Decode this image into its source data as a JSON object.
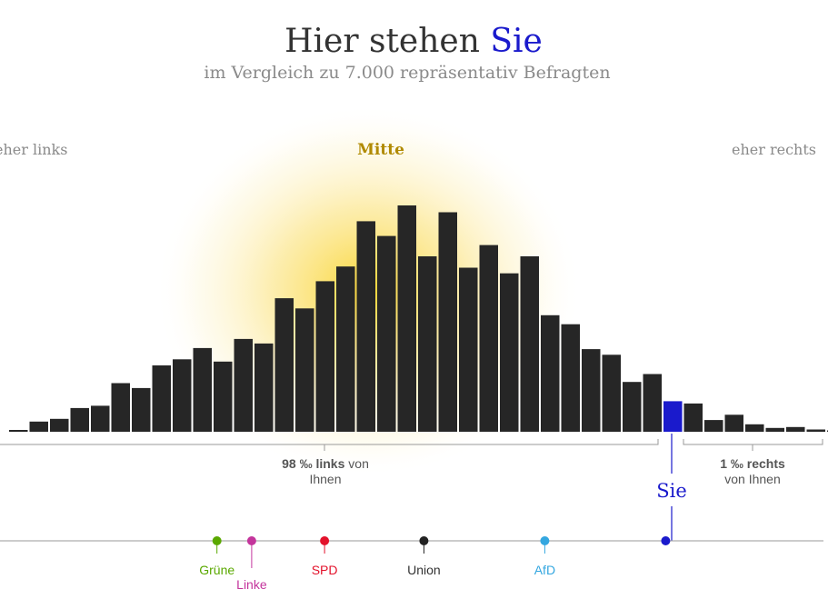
{
  "title_main": "Hier stehen",
  "title_highlight": "Sie",
  "subtitle": "im Vergleich zu 7.000 repräsentativ Befragten",
  "label_left": "eher links",
  "label_center": "Mitte",
  "label_right": "eher rechts",
  "summary_left": {
    "value": "98 ‰ links",
    "suffix": "von",
    "line2": "Ihnen"
  },
  "summary_right": {
    "value": "1 ‰ rechts",
    "line2": "von Ihnen"
  },
  "you_label": "Sie",
  "colors": {
    "bar": "#262626",
    "you": "#1a1acc",
    "glow": "#f7d23a",
    "mitte_text": "#b08a00",
    "muted_text": "#8a8a8a",
    "axis": "#999999"
  },
  "chart_data": {
    "type": "bar",
    "description_of_values": "relative respondent density per position bin (bar heights, read off the image)",
    "values": [
      0.8,
      4.5,
      5.7,
      10.5,
      11.5,
      21.5,
      19.3,
      29.3,
      32,
      37,
      31,
      41,
      39,
      59,
      54.5,
      66.5,
      73,
      93,
      86.5,
      100,
      77.5,
      97,
      72.5,
      82.5,
      70,
      77.5,
      51.5,
      47.5,
      36.5,
      34,
      22,
      25.5,
      13.5,
      12.5,
      5.2,
      7.5,
      3.3,
      1.7,
      2.1,
      1.0,
      0.6
    ],
    "you_index": 32,
    "parties": [
      {
        "name": "Grüne",
        "color": "#5aa800",
        "position": 0.262
      },
      {
        "name": "Linke",
        "color": "#c4359c",
        "position": 0.304
      },
      {
        "name": "SPD",
        "color": "#e3122b",
        "position": 0.392
      },
      {
        "name": "Union",
        "color": "#222222",
        "position": 0.512
      },
      {
        "name": "AfD",
        "color": "#34a7e0",
        "position": 0.658
      }
    ],
    "you_position": 0.804
  }
}
